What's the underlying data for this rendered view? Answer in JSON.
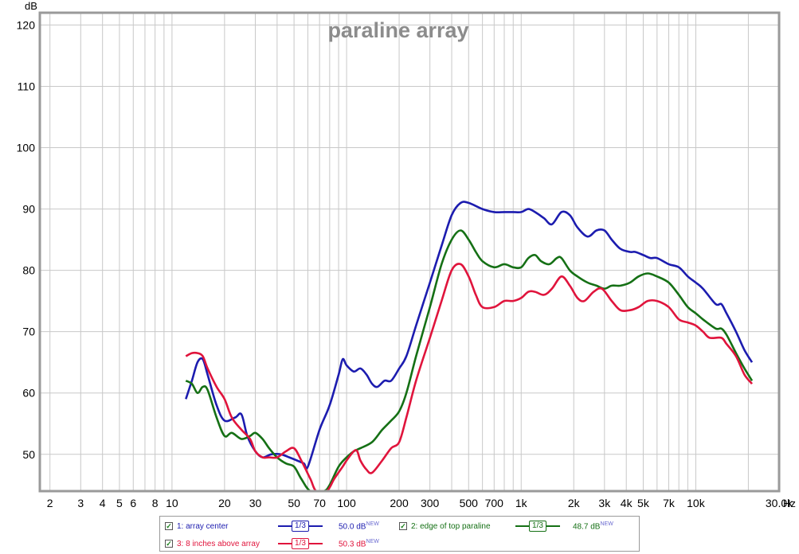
{
  "chart_data": {
    "type": "line",
    "title": "paraline array",
    "ylabel": "dB",
    "xunit": "Hz",
    "xscale": "log",
    "xlim": [
      1.75,
      30000
    ],
    "ylim": [
      44,
      122
    ],
    "grid": true,
    "y_ticks": [
      50,
      60,
      70,
      80,
      90,
      100,
      110,
      120
    ],
    "x_ticks": [
      {
        "v": 2,
        "label": "2"
      },
      {
        "v": 3,
        "label": "3"
      },
      {
        "v": 4,
        "label": "4"
      },
      {
        "v": 5,
        "label": "5"
      },
      {
        "v": 6,
        "label": "6"
      },
      {
        "v": 8,
        "label": "8"
      },
      {
        "v": 10,
        "label": "10"
      },
      {
        "v": 20,
        "label": "20"
      },
      {
        "v": 30,
        "label": "30"
      },
      {
        "v": 50,
        "label": "50"
      },
      {
        "v": 70,
        "label": "70"
      },
      {
        "v": 100,
        "label": "100"
      },
      {
        "v": 200,
        "label": "200"
      },
      {
        "v": 300,
        "label": "300"
      },
      {
        "v": 500,
        "label": "500"
      },
      {
        "v": 700,
        "label": "700"
      },
      {
        "v": 1000,
        "label": "1k"
      },
      {
        "v": 2000,
        "label": "2k"
      },
      {
        "v": 3000,
        "label": "3k"
      },
      {
        "v": 4000,
        "label": "4k"
      },
      {
        "v": 5000,
        "label": "5k"
      },
      {
        "v": 7000,
        "label": "7k"
      },
      {
        "v": 10000,
        "label": "10k"
      },
      {
        "v": 30000,
        "label": "30.0k"
      }
    ],
    "series": [
      {
        "name": "1: array center",
        "color": "#1c1caf",
        "smoothing": "1/3",
        "level": "50.0 dB",
        "points": [
          [
            12,
            59
          ],
          [
            13,
            62
          ],
          [
            14,
            65
          ],
          [
            15,
            65.5
          ],
          [
            16,
            63
          ],
          [
            18,
            58
          ],
          [
            20,
            55.5
          ],
          [
            23,
            56
          ],
          [
            25,
            56.5
          ],
          [
            27,
            53
          ],
          [
            30,
            50.5
          ],
          [
            33,
            49.5
          ],
          [
            37,
            50
          ],
          [
            42,
            50
          ],
          [
            47,
            49.5
          ],
          [
            52,
            49
          ],
          [
            57,
            48.5
          ],
          [
            60,
            48
          ],
          [
            70,
            54
          ],
          [
            80,
            58
          ],
          [
            90,
            63
          ],
          [
            95,
            65.5
          ],
          [
            100,
            64.5
          ],
          [
            110,
            63.5
          ],
          [
            120,
            64
          ],
          [
            130,
            63
          ],
          [
            140,
            61.5
          ],
          [
            150,
            61
          ],
          [
            165,
            62
          ],
          [
            180,
            62
          ],
          [
            200,
            64
          ],
          [
            220,
            66
          ],
          [
            250,
            71
          ],
          [
            300,
            78
          ],
          [
            350,
            84
          ],
          [
            400,
            89
          ],
          [
            450,
            91
          ],
          [
            500,
            91
          ],
          [
            600,
            90
          ],
          [
            700,
            89.5
          ],
          [
            800,
            89.5
          ],
          [
            900,
            89.5
          ],
          [
            1000,
            89.5
          ],
          [
            1100,
            90
          ],
          [
            1200,
            89.5
          ],
          [
            1350,
            88.5
          ],
          [
            1500,
            87.5
          ],
          [
            1700,
            89.5
          ],
          [
            1900,
            89
          ],
          [
            2100,
            87
          ],
          [
            2400,
            85.5
          ],
          [
            2700,
            86.5
          ],
          [
            3000,
            86.5
          ],
          [
            3300,
            85
          ],
          [
            3700,
            83.5
          ],
          [
            4200,
            83
          ],
          [
            4500,
            83
          ],
          [
            5000,
            82.5
          ],
          [
            5500,
            82
          ],
          [
            6000,
            82
          ],
          [
            7000,
            81
          ],
          [
            8000,
            80.5
          ],
          [
            9000,
            79
          ],
          [
            10000,
            78
          ],
          [
            11000,
            77
          ],
          [
            13000,
            74.5
          ],
          [
            14000,
            74.5
          ],
          [
            15000,
            73
          ],
          [
            17000,
            70
          ],
          [
            19000,
            67
          ],
          [
            21000,
            65
          ]
        ]
      },
      {
        "name": "2: edge of top paraline",
        "color": "#157015",
        "smoothing": "1/3",
        "level": "48.7 dB",
        "points": [
          [
            12,
            62
          ],
          [
            13,
            61.5
          ],
          [
            14,
            60
          ],
          [
            15,
            61
          ],
          [
            16,
            60.5
          ],
          [
            18,
            56
          ],
          [
            20,
            53
          ],
          [
            22,
            53.5
          ],
          [
            25,
            52.5
          ],
          [
            28,
            53
          ],
          [
            30,
            53.5
          ],
          [
            33,
            52.5
          ],
          [
            36,
            51
          ],
          [
            40,
            49.5
          ],
          [
            45,
            48.5
          ],
          [
            50,
            48
          ],
          [
            55,
            46
          ],
          [
            62,
            44
          ],
          [
            74,
            44
          ],
          [
            80,
            45
          ],
          [
            90,
            48
          ],
          [
            100,
            49.5
          ],
          [
            110,
            50.5
          ],
          [
            120,
            51
          ],
          [
            140,
            52
          ],
          [
            160,
            54
          ],
          [
            180,
            55.5
          ],
          [
            200,
            57
          ],
          [
            220,
            60
          ],
          [
            250,
            66
          ],
          [
            300,
            74
          ],
          [
            350,
            81
          ],
          [
            400,
            85
          ],
          [
            450,
            86.5
          ],
          [
            500,
            85
          ],
          [
            550,
            83
          ],
          [
            600,
            81.5
          ],
          [
            700,
            80.5
          ],
          [
            800,
            81
          ],
          [
            900,
            80.5
          ],
          [
            1000,
            80.5
          ],
          [
            1100,
            82
          ],
          [
            1200,
            82.5
          ],
          [
            1300,
            81.5
          ],
          [
            1450,
            81
          ],
          [
            1600,
            82
          ],
          [
            1700,
            82
          ],
          [
            1900,
            80
          ],
          [
            2100,
            79
          ],
          [
            2400,
            78
          ],
          [
            2700,
            77.5
          ],
          [
            3000,
            77
          ],
          [
            3300,
            77.5
          ],
          [
            3700,
            77.5
          ],
          [
            4200,
            78
          ],
          [
            4700,
            79
          ],
          [
            5300,
            79.5
          ],
          [
            6000,
            79
          ],
          [
            7000,
            78
          ],
          [
            8000,
            76
          ],
          [
            9000,
            74
          ],
          [
            10000,
            73
          ],
          [
            11000,
            72
          ],
          [
            13000,
            70.5
          ],
          [
            14000,
            70.5
          ],
          [
            15000,
            69.5
          ],
          [
            17000,
            66.5
          ],
          [
            19000,
            64
          ],
          [
            21000,
            62
          ]
        ]
      },
      {
        "name": "3: 8 inches above array",
        "color": "#e0143c",
        "smoothing": "1/3",
        "level": "50.3 dB",
        "points": [
          [
            12,
            66
          ],
          [
            13,
            66.5
          ],
          [
            14,
            66.5
          ],
          [
            15,
            66
          ],
          [
            16,
            64
          ],
          [
            18,
            61
          ],
          [
            20,
            59
          ],
          [
            22,
            56
          ],
          [
            25,
            54
          ],
          [
            28,
            52.5
          ],
          [
            30,
            50.5
          ],
          [
            33,
            49.5
          ],
          [
            36,
            49.5
          ],
          [
            40,
            49.5
          ],
          [
            45,
            50.5
          ],
          [
            50,
            51
          ],
          [
            55,
            49
          ],
          [
            62,
            46
          ],
          [
            67,
            44
          ],
          [
            77,
            44
          ],
          [
            85,
            46
          ],
          [
            95,
            48
          ],
          [
            100,
            49
          ],
          [
            110,
            50.5
          ],
          [
            115,
            50.5
          ],
          [
            120,
            49
          ],
          [
            130,
            47.5
          ],
          [
            140,
            47
          ],
          [
            160,
            49
          ],
          [
            180,
            51
          ],
          [
            200,
            52
          ],
          [
            220,
            56
          ],
          [
            250,
            62
          ],
          [
            300,
            69
          ],
          [
            350,
            75
          ],
          [
            400,
            80
          ],
          [
            450,
            81
          ],
          [
            500,
            79
          ],
          [
            550,
            76
          ],
          [
            600,
            74
          ],
          [
            700,
            74
          ],
          [
            800,
            75
          ],
          [
            900,
            75
          ],
          [
            1000,
            75.5
          ],
          [
            1100,
            76.5
          ],
          [
            1200,
            76.5
          ],
          [
            1350,
            76
          ],
          [
            1500,
            77
          ],
          [
            1700,
            79
          ],
          [
            1900,
            77.5
          ],
          [
            2100,
            75.5
          ],
          [
            2300,
            75
          ],
          [
            2600,
            76.5
          ],
          [
            2900,
            77
          ],
          [
            3300,
            75
          ],
          [
            3700,
            73.5
          ],
          [
            4200,
            73.5
          ],
          [
            4700,
            74
          ],
          [
            5300,
            75
          ],
          [
            6000,
            75
          ],
          [
            7000,
            74
          ],
          [
            8000,
            72
          ],
          [
            9000,
            71.5
          ],
          [
            10000,
            71
          ],
          [
            11000,
            70
          ],
          [
            12000,
            69
          ],
          [
            14000,
            69
          ],
          [
            15000,
            68
          ],
          [
            17000,
            66
          ],
          [
            19000,
            63
          ],
          [
            21000,
            61.5
          ]
        ]
      }
    ]
  },
  "legend": {
    "items": [
      {
        "label": "1: array center",
        "smoothing": "1/3",
        "level": "50.0 dB",
        "new": "NEW",
        "color": "#1c1caf",
        "label_color": "#1c1caf"
      },
      {
        "label": "2: edge of top paraline",
        "smoothing": "1/3",
        "level": "48.7 dB",
        "new": "NEW",
        "color": "#157015",
        "label_color": "#157015"
      },
      {
        "label": "3: 8 inches above array",
        "smoothing": "1/3",
        "level": "50.3 dB",
        "new": "NEW",
        "color": "#e0143c",
        "label_color": "#e0143c"
      }
    ]
  }
}
